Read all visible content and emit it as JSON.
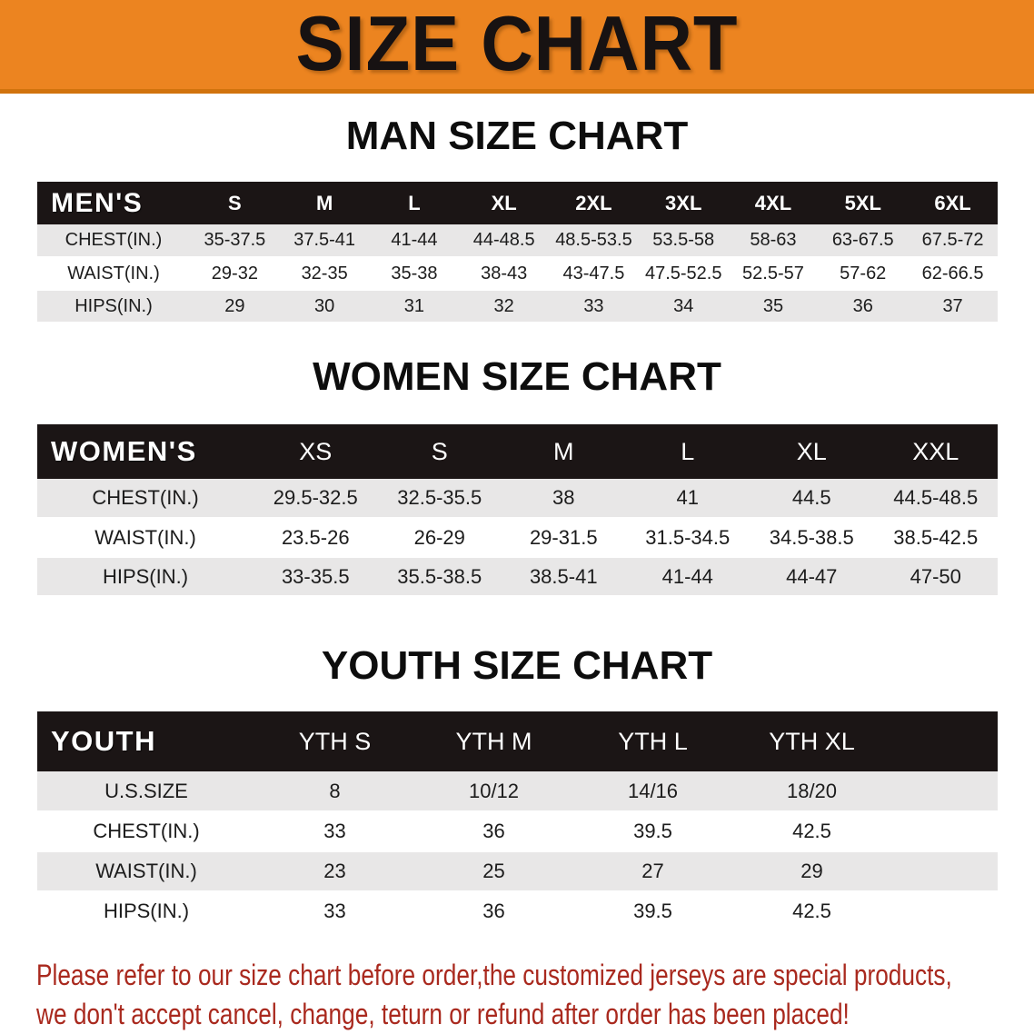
{
  "banner": {
    "title": "SIZE CHART",
    "bg_color": "#ec8420",
    "text_color": "#171212"
  },
  "colors": {
    "table_header_bg": "#1b1515",
    "stripe_gray": "#e8e7e7",
    "footer_red": "#a9291e"
  },
  "sections": [
    {
      "title": "MAN SIZE CHART",
      "header_label": "MEN'S",
      "columns": [
        "S",
        "M",
        "L",
        "XL",
        "2XL",
        "3XL",
        "4XL",
        "5XL",
        "6XL"
      ],
      "rows": [
        {
          "label": "CHEST(IN.)",
          "values": [
            "35-37.5",
            "37.5-41",
            "41-44",
            "44-48.5",
            "48.5-53.5",
            "53.5-58",
            "58-63",
            "63-67.5",
            "67.5-72"
          ]
        },
        {
          "label": "WAIST(IN.)",
          "values": [
            "29-32",
            "32-35",
            "35-38",
            "38-43",
            "43-47.5",
            "47.5-52.5",
            "52.5-57",
            "57-62",
            "62-66.5"
          ]
        },
        {
          "label": "HIPS(IN.)",
          "values": [
            "29",
            "30",
            "31",
            "32",
            "33",
            "34",
            "35",
            "36",
            "37"
          ]
        }
      ]
    },
    {
      "title": "WOMEN SIZE CHART",
      "header_label": "WOMEN'S",
      "columns": [
        "XS",
        "S",
        "M",
        "L",
        "XL",
        "XXL"
      ],
      "rows": [
        {
          "label": "CHEST(IN.)",
          "values": [
            "29.5-32.5",
            "32.5-35.5",
            "38",
            "41",
            "44.5",
            "44.5-48.5"
          ]
        },
        {
          "label": "WAIST(IN.)",
          "values": [
            "23.5-26",
            "26-29",
            "29-31.5",
            "31.5-34.5",
            "34.5-38.5",
            "38.5-42.5"
          ]
        },
        {
          "label": "HIPS(IN.)",
          "values": [
            "33-35.5",
            "35.5-38.5",
            "38.5-41",
            "41-44",
            "44-47",
            "47-50"
          ]
        }
      ]
    },
    {
      "title": "YOUTH SIZE CHART",
      "header_label": "YOUTH",
      "columns": [
        "YTH S",
        "YTH M",
        "YTH L",
        "YTH XL"
      ],
      "rows": [
        {
          "label": "U.S.SIZE",
          "values": [
            "8",
            "10/12",
            "14/16",
            "18/20"
          ]
        },
        {
          "label": "CHEST(IN.)",
          "values": [
            "33",
            "36",
            "39.5",
            "42.5"
          ]
        },
        {
          "label": "WAIST(IN.)",
          "values": [
            "23",
            "25",
            "27",
            "29"
          ]
        },
        {
          "label": "HIPS(IN.)",
          "values": [
            "33",
            "36",
            "39.5",
            "42.5"
          ]
        }
      ]
    }
  ],
  "footer": {
    "line1": "Please refer to our size chart before order,the customized jerseys are special products,",
    "line2": "we don't accept cancel, change, teturn or refund after order has been placed!"
  }
}
